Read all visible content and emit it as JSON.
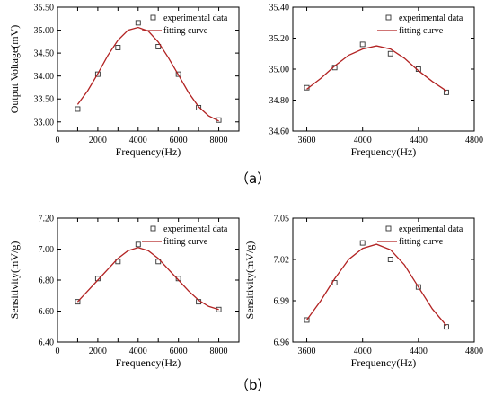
{
  "panel_labels": {
    "a": "（a）",
    "b": "（b）"
  },
  "colors": {
    "curve": "#b22222",
    "axis": "#000000",
    "marker": "#333333"
  },
  "chart_data": [
    {
      "id": "a-left",
      "type": "scatter",
      "xlabel": "Frequency(Hz)",
      "ylabel": "Output Voltage(mV)",
      "xlim": [
        0,
        9000
      ],
      "ylim": [
        32.8,
        35.5
      ],
      "x_ticks": [
        1000,
        2000,
        3000,
        4000,
        5000,
        6000,
        7000,
        8000
      ],
      "x_tick_labels": [
        "0",
        "2000",
        "4000",
        "6000",
        "8000"
      ],
      "x_tick_label_values": [
        0,
        2000,
        4000,
        6000,
        8000
      ],
      "y_ticks": [
        33.0,
        33.5,
        34.0,
        34.5,
        35.0,
        35.5
      ],
      "y_tick_labels": [
        "33.00",
        "33.50",
        "34.00",
        "34.50",
        "35.00",
        "35.50"
      ],
      "legend": {
        "position": "top-right",
        "entries": [
          "experimental data",
          "fitting curve"
        ]
      },
      "series": [
        {
          "name": "experimental data",
          "kind": "marker",
          "x": [
            1000,
            2000,
            3000,
            4000,
            5000,
            6000,
            7000,
            8000
          ],
          "y": [
            33.28,
            34.04,
            34.62,
            35.16,
            34.64,
            34.04,
            33.31,
            33.04
          ]
        },
        {
          "name": "fitting curve",
          "kind": "line",
          "x": [
            1000,
            1500,
            2000,
            2500,
            3000,
            3500,
            4000,
            4500,
            5000,
            5500,
            6000,
            6500,
            7000,
            7500,
            8000
          ],
          "y": [
            33.38,
            33.68,
            34.05,
            34.45,
            34.78,
            35.0,
            35.06,
            34.98,
            34.74,
            34.4,
            34.02,
            33.64,
            33.33,
            33.13,
            33.02
          ]
        }
      ]
    },
    {
      "id": "a-right",
      "type": "scatter",
      "xlabel": "Frequency(Hz)",
      "ylabel": "",
      "xlim": [
        3500,
        4800
      ],
      "ylim": [
        34.6,
        35.4
      ],
      "x_ticks": [
        3600,
        4000,
        4400,
        4800
      ],
      "x_tick_labels": [
        "3600",
        "4000",
        "4400",
        "4800"
      ],
      "x_tick_label_values": [
        3600,
        4000,
        4400,
        4800
      ],
      "y_ticks": [
        34.6,
        34.8,
        35.0,
        35.2,
        35.4
      ],
      "y_tick_labels": [
        "34.60",
        "34.80",
        "35.00",
        "35.20",
        "35.40"
      ],
      "legend": {
        "position": "top-right",
        "entries": [
          "experimental data",
          "fitting curve"
        ]
      },
      "series": [
        {
          "name": "experimental data",
          "kind": "marker",
          "x": [
            3600,
            3800,
            4000,
            4200,
            4400,
            4600
          ],
          "y": [
            34.88,
            35.01,
            35.16,
            35.1,
            35.0,
            34.85
          ]
        },
        {
          "name": "fitting curve",
          "kind": "line",
          "x": [
            3600,
            3700,
            3800,
            3900,
            4000,
            4100,
            4200,
            4300,
            4400,
            4500,
            4600
          ],
          "y": [
            34.87,
            34.94,
            35.02,
            35.09,
            35.13,
            35.15,
            35.13,
            35.07,
            34.99,
            34.92,
            34.86
          ]
        }
      ]
    },
    {
      "id": "b-left",
      "type": "scatter",
      "xlabel": "Frequency(Hz)",
      "ylabel": "Sensitivity(mV/g)",
      "xlim": [
        0,
        9000
      ],
      "ylim": [
        6.4,
        7.2
      ],
      "x_ticks": [
        1000,
        2000,
        3000,
        4000,
        5000,
        6000,
        7000,
        8000
      ],
      "x_tick_labels": [
        "0",
        "2000",
        "4000",
        "6000",
        "8000"
      ],
      "x_tick_label_values": [
        0,
        2000,
        4000,
        6000,
        8000
      ],
      "y_ticks": [
        6.4,
        6.6,
        6.8,
        7.0,
        7.2
      ],
      "y_tick_labels": [
        "6.40",
        "6.60",
        "6.80",
        "7.00",
        "7.20"
      ],
      "legend": {
        "position": "top-right",
        "entries": [
          "experimental data",
          "fitting curve"
        ]
      },
      "series": [
        {
          "name": "experimental data",
          "kind": "marker",
          "x": [
            1000,
            2000,
            3000,
            4000,
            5000,
            6000,
            7000,
            8000
          ],
          "y": [
            6.66,
            6.81,
            6.92,
            7.03,
            6.92,
            6.81,
            6.66,
            6.61
          ]
        },
        {
          "name": "fitting curve",
          "kind": "line",
          "x": [
            1000,
            1500,
            2000,
            2500,
            3000,
            3500,
            4000,
            4500,
            5000,
            5500,
            6000,
            6500,
            7000,
            7500,
            8000
          ],
          "y": [
            6.66,
            6.73,
            6.8,
            6.87,
            6.94,
            6.99,
            7.01,
            6.99,
            6.94,
            6.87,
            6.8,
            6.73,
            6.67,
            6.63,
            6.61
          ]
        }
      ]
    },
    {
      "id": "b-right",
      "type": "scatter",
      "xlabel": "Frequency(Hz)",
      "ylabel": "Sensitivity(mV/g)",
      "xlim": [
        3500,
        4800
      ],
      "ylim": [
        6.96,
        7.05
      ],
      "x_ticks": [
        3600,
        4000,
        4400,
        4800
      ],
      "x_tick_labels": [
        "3600",
        "4000",
        "4400",
        "4800"
      ],
      "x_tick_label_values": [
        3600,
        4000,
        4400,
        4800
      ],
      "y_ticks": [
        6.96,
        6.99,
        7.02,
        7.05
      ],
      "y_tick_labels": [
        "6.96",
        "6.99",
        "7.02",
        "7.05"
      ],
      "legend": {
        "position": "top-right",
        "entries": [
          "experimental data",
          "fitting curve"
        ]
      },
      "series": [
        {
          "name": "experimental data",
          "kind": "marker",
          "x": [
            3600,
            3800,
            4000,
            4200,
            4400,
            4600
          ],
          "y": [
            6.976,
            7.003,
            7.032,
            7.02,
            7.0,
            6.971
          ]
        },
        {
          "name": "fitting curve",
          "kind": "line",
          "x": [
            3600,
            3700,
            3800,
            3900,
            4000,
            4100,
            4200,
            4300,
            4400,
            4500,
            4600
          ],
          "y": [
            6.976,
            6.99,
            7.006,
            7.02,
            7.028,
            7.031,
            7.027,
            7.016,
            7.0,
            6.984,
            6.972
          ]
        }
      ]
    }
  ]
}
